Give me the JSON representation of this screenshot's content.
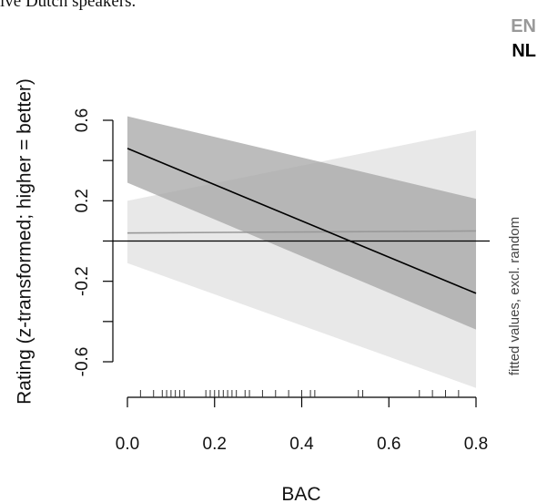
{
  "caption_fragment": "ive Dutch speakers.",
  "chart_data": {
    "type": "line",
    "title": "",
    "xlabel": "BAC",
    "ylabel": "Rating (z-transformed; higher = better)",
    "right_label": "fitted values, excl. random",
    "xlim": [
      0,
      0.8
    ],
    "ylim": [
      -0.6,
      0.6
    ],
    "x_ticks": [
      "0.0",
      "0.2",
      "0.4",
      "0.6",
      "0.8"
    ],
    "y_ticks": [
      "-0.6",
      "-0.2",
      "0.2",
      "0.6"
    ],
    "reference_line_y": 0,
    "legend": {
      "position": "top-right",
      "entries": [
        "EN",
        "NL"
      ]
    },
    "series": [
      {
        "name": "EN",
        "color": "#999999",
        "band_color": "#e8e8e8",
        "x": [
          0,
          0.8
        ],
        "y": [
          0.04,
          0.05
        ],
        "lower": [
          -0.11,
          -0.73
        ],
        "upper": [
          0.2,
          0.55
        ]
      },
      {
        "name": "NL",
        "color": "#000000",
        "band_color": "#a6a6a6",
        "x": [
          0,
          0.8
        ],
        "y": [
          0.46,
          -0.26
        ],
        "lower": [
          0.29,
          -0.44
        ],
        "upper": [
          0.62,
          0.21
        ]
      }
    ],
    "rug": [
      0.03,
      0.06,
      0.08,
      0.09,
      0.1,
      0.11,
      0.12,
      0.13,
      0.18,
      0.19,
      0.2,
      0.21,
      0.22,
      0.23,
      0.24,
      0.25,
      0.27,
      0.28,
      0.31,
      0.34,
      0.37,
      0.4,
      0.42,
      0.43,
      0.53,
      0.54,
      0.67,
      0.7,
      0.73,
      0.76
    ]
  }
}
